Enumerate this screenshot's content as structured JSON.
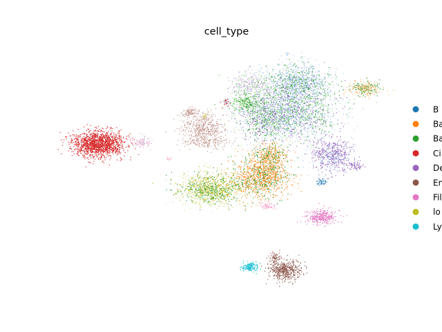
{
  "chart_data": {
    "type": "scatter",
    "title": "cell_type",
    "xlabel": "",
    "ylabel": "",
    "grid": false,
    "axes_visible": false,
    "legend_placement": "right",
    "series": [
      {
        "name": "B",
        "color": "#1f77b4"
      },
      {
        "name": "Ba",
        "color": "#ff7f0e"
      },
      {
        "name": "Ba",
        "color": "#2ca02c"
      },
      {
        "name": "Ci",
        "color": "#d62728"
      },
      {
        "name": "De",
        "color": "#9467bd"
      },
      {
        "name": "En",
        "color": "#8c564b"
      },
      {
        "name": "Fil",
        "color": "#e377c2"
      },
      {
        "name": "lo",
        "color": "#bcbd22"
      },
      {
        "name": "Ly",
        "color": "#17becf"
      }
    ],
    "extra_colors": [
      "#aec7e8",
      "#ffbb78",
      "#98df8a",
      "#c5b0d5",
      "#c49c94",
      "#f7b6d2",
      "#dbdb8d",
      "#9edae5"
    ]
  }
}
